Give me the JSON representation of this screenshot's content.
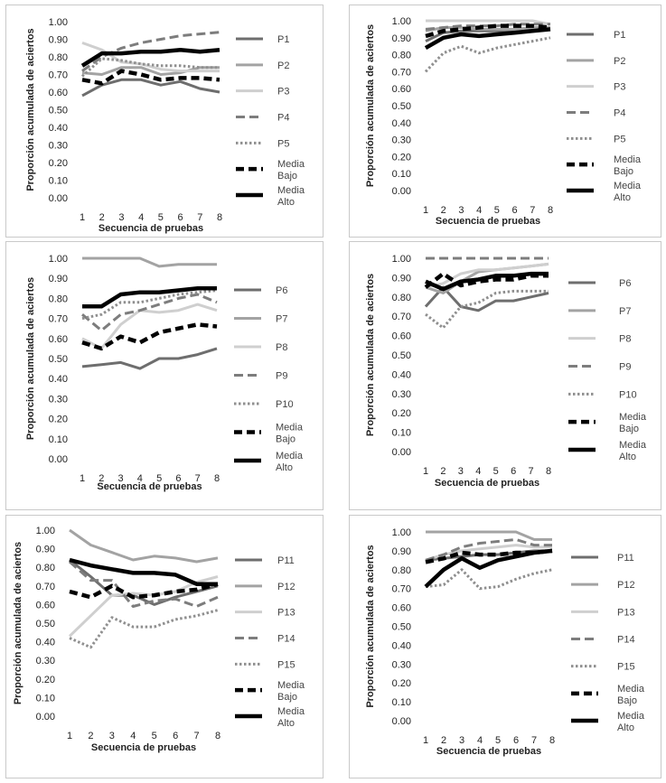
{
  "chart_data": [
    {
      "type": "line",
      "xlabel": "Secuencia de pruebas",
      "ylabel": "Proporción acumulada de aciertos",
      "ylim": [
        0,
        1
      ],
      "yticks": [
        "0.00",
        "0.10",
        "0.20",
        "0.30",
        "0.40",
        "0.50",
        "0.60",
        "0.70",
        "0.80",
        "0.90",
        "1.00"
      ],
      "categories": [
        "1",
        "2",
        "3",
        "4",
        "5",
        "6",
        "7",
        "8"
      ],
      "legend_position": "right",
      "grid": false,
      "series": [
        {
          "name": "P1",
          "style": "p-a",
          "values": [
            0.58,
            0.64,
            0.67,
            0.67,
            0.64,
            0.66,
            0.62,
            0.6
          ]
        },
        {
          "name": "P2",
          "style": "p-b",
          "values": [
            0.71,
            0.7,
            0.74,
            0.74,
            0.7,
            0.71,
            0.74,
            0.74
          ]
        },
        {
          "name": "P3",
          "style": "p-c",
          "values": [
            0.88,
            0.84,
            0.77,
            0.76,
            0.73,
            0.72,
            0.72,
            0.72
          ]
        },
        {
          "name": "P4",
          "style": "p-d",
          "values": [
            0.72,
            0.8,
            0.85,
            0.88,
            0.9,
            0.92,
            0.93,
            0.94
          ]
        },
        {
          "name": "P5",
          "style": "p-e",
          "values": [
            0.69,
            0.79,
            0.78,
            0.76,
            0.75,
            0.75,
            0.74,
            0.74
          ]
        },
        {
          "name": "Media Bajo",
          "style": "m-bajo",
          "values": [
            0.67,
            0.65,
            0.72,
            0.7,
            0.67,
            0.68,
            0.68,
            0.67
          ]
        },
        {
          "name": "Media Alto",
          "style": "m-alto",
          "values": [
            0.75,
            0.82,
            0.82,
            0.83,
            0.83,
            0.84,
            0.83,
            0.84
          ]
        }
      ]
    },
    {
      "type": "line",
      "xlabel": "Secuencia de pruebas",
      "ylabel": "Proporción acumulada de aciertos",
      "ylim": [
        0,
        1
      ],
      "yticks": [
        "0.00",
        "0.10",
        "0.20",
        "0.30",
        "0.40",
        "0.50",
        "0.60",
        "0.70",
        "0.80",
        "0.90",
        "1.00"
      ],
      "categories": [
        "1",
        "2",
        "3",
        "4",
        "5",
        "6",
        "7",
        "8"
      ],
      "legend_position": "right",
      "grid": false,
      "series": [
        {
          "name": "P1",
          "style": "p-a",
          "values": [
            0.88,
            0.93,
            0.94,
            0.94,
            0.94,
            0.94,
            0.95,
            0.95
          ]
        },
        {
          "name": "P2",
          "style": "p-b",
          "values": [
            0.94,
            0.96,
            0.96,
            0.95,
            0.95,
            0.95,
            0.96,
            0.96
          ]
        },
        {
          "name": "P3",
          "style": "p-c",
          "values": [
            1.0,
            1.0,
            1.0,
            1.0,
            1.0,
            1.0,
            1.0,
            0.98
          ]
        },
        {
          "name": "P4",
          "style": "p-d",
          "values": [
            0.95,
            0.96,
            0.97,
            0.97,
            0.97,
            0.98,
            0.98,
            0.98
          ]
        },
        {
          "name": "P5",
          "style": "p-e",
          "values": [
            0.7,
            0.81,
            0.85,
            0.81,
            0.84,
            0.86,
            0.88,
            0.9
          ]
        },
        {
          "name": "Media Bajo",
          "style": "m-bajo",
          "values": [
            0.91,
            0.94,
            0.95,
            0.96,
            0.97,
            0.97,
            0.97,
            0.96
          ]
        },
        {
          "name": "Media Alto",
          "style": "m-alto",
          "values": [
            0.84,
            0.9,
            0.92,
            0.91,
            0.92,
            0.93,
            0.94,
            0.95
          ]
        }
      ]
    },
    {
      "type": "line",
      "xlabel": "Secuencia de pruebas",
      "ylabel": "Proporción acumulada de aciertos",
      "ylim": [
        0,
        1
      ],
      "yticks": [
        "0.00",
        "0.10",
        "0.20",
        "0.30",
        "0.40",
        "0.50",
        "0.60",
        "0.70",
        "0.80",
        "0.90",
        "1.00"
      ],
      "categories": [
        "1",
        "2",
        "3",
        "4",
        "5",
        "6",
        "7",
        "8"
      ],
      "legend_position": "right",
      "grid": false,
      "series": [
        {
          "name": "P6",
          "style": "p-a",
          "values": [
            0.46,
            0.47,
            0.48,
            0.45,
            0.5,
            0.5,
            0.52,
            0.55
          ]
        },
        {
          "name": "P7",
          "style": "p-b",
          "values": [
            1.0,
            1.0,
            1.0,
            1.0,
            0.96,
            0.97,
            0.97,
            0.97
          ]
        },
        {
          "name": "P8",
          "style": "p-c",
          "values": [
            0.6,
            0.55,
            0.67,
            0.74,
            0.73,
            0.74,
            0.77,
            0.74
          ]
        },
        {
          "name": "P9",
          "style": "p-d",
          "values": [
            0.72,
            0.64,
            0.72,
            0.74,
            0.77,
            0.8,
            0.82,
            0.78
          ]
        },
        {
          "name": "P10",
          "style": "p-e",
          "values": [
            0.7,
            0.72,
            0.78,
            0.78,
            0.8,
            0.82,
            0.83,
            0.84
          ]
        },
        {
          "name": "Media Bajo",
          "style": "m-bajo",
          "values": [
            0.58,
            0.55,
            0.61,
            0.58,
            0.63,
            0.65,
            0.67,
            0.66
          ]
        },
        {
          "name": "Media Alto",
          "style": "m-alto",
          "values": [
            0.76,
            0.76,
            0.82,
            0.83,
            0.83,
            0.84,
            0.85,
            0.85
          ]
        }
      ]
    },
    {
      "type": "line",
      "xlabel": "Secuencia de pruebas",
      "ylabel": "Proporción acumulada de aciertos",
      "ylim": [
        0,
        1
      ],
      "yticks": [
        "0.00",
        "0.10",
        "0.20",
        "0.30",
        "0.40",
        "0.50",
        "0.60",
        "0.70",
        "0.80",
        "0.90",
        "1.00"
      ],
      "categories": [
        "1",
        "2",
        "3",
        "4",
        "5",
        "6",
        "7",
        "8"
      ],
      "legend_position": "right",
      "grid": false,
      "series": [
        {
          "name": "P6",
          "style": "p-a",
          "values": [
            0.75,
            0.85,
            0.75,
            0.73,
            0.78,
            0.78,
            0.8,
            0.82
          ]
        },
        {
          "name": "P7",
          "style": "p-b",
          "values": [
            0.85,
            0.82,
            0.88,
            0.93,
            0.94,
            0.95,
            0.96,
            0.97
          ]
        },
        {
          "name": "P8",
          "style": "p-c",
          "values": [
            0.85,
            0.87,
            0.92,
            0.94,
            0.94,
            0.95,
            0.96,
            0.97
          ]
        },
        {
          "name": "P9",
          "style": "p-d",
          "values": [
            1.0,
            1.0,
            1.0,
            1.0,
            1.0,
            1.0,
            1.0,
            1.0
          ]
        },
        {
          "name": "P10",
          "style": "p-e",
          "values": [
            0.71,
            0.64,
            0.75,
            0.77,
            0.82,
            0.83,
            0.83,
            0.83
          ]
        },
        {
          "name": "Media Bajo",
          "style": "m-bajo",
          "values": [
            0.85,
            0.92,
            0.86,
            0.88,
            0.89,
            0.89,
            0.91,
            0.91
          ]
        },
        {
          "name": "Media Alto",
          "style": "m-alto",
          "values": [
            0.88,
            0.84,
            0.88,
            0.89,
            0.91,
            0.91,
            0.92,
            0.92
          ]
        }
      ]
    },
    {
      "type": "line",
      "xlabel": "Secuencia de pruebas",
      "ylabel": "Proporción acumulada de aciertos",
      "ylim": [
        0,
        1
      ],
      "yticks": [
        "0.00",
        "0.10",
        "0.20",
        "0.30",
        "0.40",
        "0.50",
        "0.60",
        "0.70",
        "0.80",
        "0.90",
        "1.00"
      ],
      "categories": [
        "1",
        "2",
        "3",
        "4",
        "5",
        "6",
        "7",
        "8"
      ],
      "legend_position": "right",
      "grid": false,
      "series": [
        {
          "name": "P11",
          "style": "p-a",
          "values": [
            0.84,
            0.75,
            0.65,
            0.65,
            0.6,
            0.64,
            0.67,
            0.7
          ]
        },
        {
          "name": "P12",
          "style": "p-b",
          "values": [
            1.0,
            0.92,
            0.88,
            0.84,
            0.86,
            0.85,
            0.83,
            0.85
          ]
        },
        {
          "name": "P13",
          "style": "p-c",
          "values": [
            0.43,
            0.54,
            0.65,
            0.66,
            0.65,
            0.67,
            0.72,
            0.75
          ]
        },
        {
          "name": "P14",
          "style": "p-d",
          "values": [
            0.83,
            0.73,
            0.73,
            0.59,
            0.62,
            0.63,
            0.59,
            0.64
          ]
        },
        {
          "name": "P15",
          "style": "p-e",
          "values": [
            0.42,
            0.37,
            0.53,
            0.48,
            0.48,
            0.52,
            0.54,
            0.57
          ]
        },
        {
          "name": "Media Bajo",
          "style": "m-bajo",
          "values": [
            0.67,
            0.64,
            0.7,
            0.64,
            0.65,
            0.67,
            0.68,
            0.71
          ]
        },
        {
          "name": "Media Alto",
          "style": "m-alto",
          "values": [
            0.84,
            0.81,
            0.79,
            0.77,
            0.77,
            0.76,
            0.71,
            0.71
          ]
        }
      ]
    },
    {
      "type": "line",
      "xlabel": "Secuencia de pruebas",
      "ylabel": "Proporción acumulada de aciertos",
      "ylim": [
        0,
        1
      ],
      "yticks": [
        "0.00",
        "0.10",
        "0.20",
        "0.30",
        "0.40",
        "0.50",
        "0.60",
        "0.70",
        "0.80",
        "0.90",
        "1.00"
      ],
      "categories": [
        "1",
        "2",
        "3",
        "4",
        "5",
        "6",
        "7",
        "8"
      ],
      "legend_position": "right",
      "grid": false,
      "series": [
        {
          "name": "P11",
          "style": "p-a",
          "values": [
            0.85,
            0.86,
            0.87,
            0.88,
            0.88,
            0.89,
            0.9,
            0.9
          ]
        },
        {
          "name": "P12",
          "style": "p-b",
          "values": [
            1.0,
            1.0,
            1.0,
            1.0,
            1.0,
            1.0,
            0.96,
            0.96
          ]
        },
        {
          "name": "P13",
          "style": "p-c",
          "values": [
            0.85,
            0.88,
            0.9,
            0.91,
            0.92,
            0.93,
            0.92,
            0.92
          ]
        },
        {
          "name": "P14",
          "style": "p-d",
          "values": [
            0.85,
            0.88,
            0.92,
            0.94,
            0.95,
            0.96,
            0.93,
            0.93
          ]
        },
        {
          "name": "P15",
          "style": "p-e",
          "values": [
            0.71,
            0.72,
            0.8,
            0.7,
            0.71,
            0.75,
            0.78,
            0.8
          ]
        },
        {
          "name": "Media Bajo",
          "style": "m-bajo",
          "values": [
            0.84,
            0.86,
            0.89,
            0.88,
            0.88,
            0.89,
            0.89,
            0.9
          ]
        },
        {
          "name": "Media Alto",
          "style": "m-alto",
          "values": [
            0.71,
            0.8,
            0.86,
            0.81,
            0.85,
            0.87,
            0.89,
            0.9
          ]
        }
      ]
    }
  ],
  "series_styles": {
    "p-a": {
      "color": "#6e6e6e",
      "dash": "",
      "width": 3
    },
    "p-b": {
      "color": "#a3a3a3",
      "dash": "",
      "width": 3
    },
    "p-c": {
      "color": "#cfcfcf",
      "dash": "",
      "width": 3
    },
    "p-d": {
      "color": "#7d7d7d",
      "dash": "10,5",
      "width": 3
    },
    "p-e": {
      "color": "#8f8f8f",
      "dash": "2.5,2.5",
      "width": 3
    },
    "m-bajo": {
      "color": "#000000",
      "dash": "9,5",
      "width": 4.5
    },
    "m-alto": {
      "color": "#000000",
      "dash": "",
      "width": 4.5
    }
  }
}
